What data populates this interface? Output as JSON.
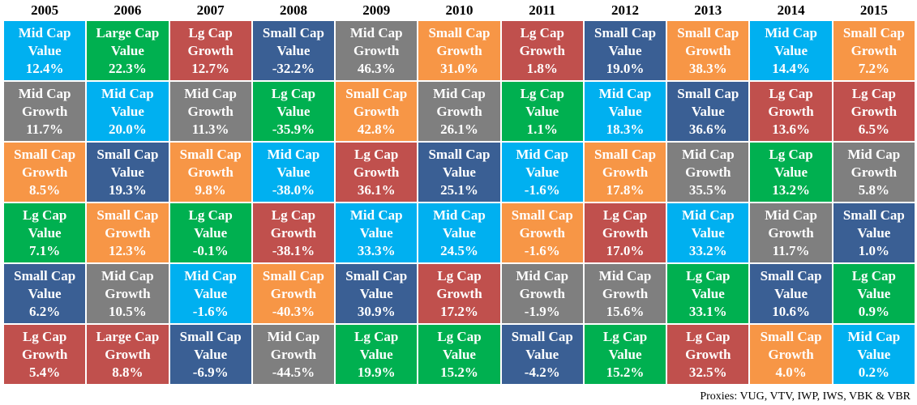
{
  "columns": [
    {
      "year": "2005",
      "cells": [
        {
          "line1": "Mid Cap",
          "line2": "Value",
          "value": "12.4%",
          "color": "#00b0f0"
        },
        {
          "line1": "Mid Cap",
          "line2": "Growth",
          "value": "11.7%",
          "color": "#7f7f7f"
        },
        {
          "line1": "Small Cap",
          "line2": "Growth",
          "value": "8.5%",
          "color": "#f79646"
        },
        {
          "line1": "Lg Cap",
          "line2": "Value",
          "value": "7.1%",
          "color": "#00b050"
        },
        {
          "line1": "Small Cap",
          "line2": "Value",
          "value": "6.2%",
          "color": "#3a5f94"
        },
        {
          "line1": "Lg Cap",
          "line2": "Growth",
          "value": "5.4%",
          "color": "#c0504d"
        }
      ]
    },
    {
      "year": "2006",
      "cells": [
        {
          "line1": "Large Cap",
          "line2": "Value",
          "value": "22.3%",
          "color": "#00b050"
        },
        {
          "line1": "Mid Cap",
          "line2": "Value",
          "value": "20.0%",
          "color": "#00b0f0"
        },
        {
          "line1": "Small Cap",
          "line2": "Value",
          "value": "19.3%",
          "color": "#3a5f94"
        },
        {
          "line1": "Small Cap",
          "line2": "Growth",
          "value": "12.3%",
          "color": "#f79646"
        },
        {
          "line1": "Mid Cap",
          "line2": "Growth",
          "value": "10.5%",
          "color": "#7f7f7f"
        },
        {
          "line1": "Large Cap",
          "line2": "Growth",
          "value": "8.8%",
          "color": "#c0504d"
        }
      ]
    },
    {
      "year": "2007",
      "cells": [
        {
          "line1": "Lg Cap",
          "line2": "Growth",
          "value": "12.7%",
          "color": "#c0504d"
        },
        {
          "line1": "Mid Cap",
          "line2": "Growth",
          "value": "11.3%",
          "color": "#7f7f7f"
        },
        {
          "line1": "Small Cap",
          "line2": "Growth",
          "value": "9.8%",
          "color": "#f79646"
        },
        {
          "line1": "Lg Cap",
          "line2": "Value",
          "value": "-0.1%",
          "color": "#00b050"
        },
        {
          "line1": "Mid Cap",
          "line2": "Value",
          "value": "-1.6%",
          "color": "#00b0f0"
        },
        {
          "line1": "Small Cap",
          "line2": "Value",
          "value": "-6.9%",
          "color": "#3a5f94"
        }
      ]
    },
    {
      "year": "2008",
      "cells": [
        {
          "line1": "Small Cap",
          "line2": "Value",
          "value": "-32.2%",
          "color": "#3a5f94"
        },
        {
          "line1": "Lg Cap",
          "line2": "Value",
          "value": "-35.9%",
          "color": "#00b050"
        },
        {
          "line1": "Mid Cap",
          "line2": "Value",
          "value": "-38.0%",
          "color": "#00b0f0"
        },
        {
          "line1": "Lg Cap",
          "line2": "Growth",
          "value": "-38.1%",
          "color": "#c0504d"
        },
        {
          "line1": "Small Cap",
          "line2": "Growth",
          "value": "-40.3%",
          "color": "#f79646"
        },
        {
          "line1": "Mid Cap",
          "line2": "Growth",
          "value": "-44.5%",
          "color": "#7f7f7f"
        }
      ]
    },
    {
      "year": "2009",
      "cells": [
        {
          "line1": "Mid Cap",
          "line2": "Growth",
          "value": "46.3%",
          "color": "#7f7f7f"
        },
        {
          "line1": "Small Cap",
          "line2": "Growth",
          "value": "42.8%",
          "color": "#f79646"
        },
        {
          "line1": "Lg Cap",
          "line2": "Growth",
          "value": "36.1%",
          "color": "#c0504d"
        },
        {
          "line1": "Mid Cap",
          "line2": "Value",
          "value": "33.3%",
          "color": "#00b0f0"
        },
        {
          "line1": "Small Cap",
          "line2": "Value",
          "value": "30.9%",
          "color": "#3a5f94"
        },
        {
          "line1": "Lg Cap",
          "line2": "Value",
          "value": "19.9%",
          "color": "#00b050"
        }
      ]
    },
    {
      "year": "2010",
      "cells": [
        {
          "line1": "Small Cap",
          "line2": "Growth",
          "value": "31.0%",
          "color": "#f79646"
        },
        {
          "line1": "Mid Cap",
          "line2": "Growth",
          "value": "26.1%",
          "color": "#7f7f7f"
        },
        {
          "line1": "Small Cap",
          "line2": "Value",
          "value": "25.1%",
          "color": "#3a5f94"
        },
        {
          "line1": "Mid Cap",
          "line2": "Value",
          "value": "24.5%",
          "color": "#00b0f0"
        },
        {
          "line1": "Lg Cap",
          "line2": "Growth",
          "value": "17.2%",
          "color": "#c0504d"
        },
        {
          "line1": "Lg Cap",
          "line2": "Value",
          "value": "15.2%",
          "color": "#00b050"
        }
      ]
    },
    {
      "year": "2011",
      "cells": [
        {
          "line1": "Lg Cap",
          "line2": "Growth",
          "value": "1.8%",
          "color": "#c0504d"
        },
        {
          "line1": "Lg Cap",
          "line2": "Value",
          "value": "1.1%",
          "color": "#00b050"
        },
        {
          "line1": "Mid Cap",
          "line2": "Value",
          "value": "-1.6%",
          "color": "#00b0f0"
        },
        {
          "line1": "Small Cap",
          "line2": "Growth",
          "value": "-1.6%",
          "color": "#f79646"
        },
        {
          "line1": "Mid Cap",
          "line2": "Growth",
          "value": "-1.9%",
          "color": "#7f7f7f"
        },
        {
          "line1": "Small Cap",
          "line2": "Value",
          "value": "-4.2%",
          "color": "#3a5f94"
        }
      ]
    },
    {
      "year": "2012",
      "cells": [
        {
          "line1": "Small Cap",
          "line2": "Value",
          "value": "19.0%",
          "color": "#3a5f94"
        },
        {
          "line1": "Mid Cap",
          "line2": "Value",
          "value": "18.3%",
          "color": "#00b0f0"
        },
        {
          "line1": "Small Cap",
          "line2": "Growth",
          "value": "17.8%",
          "color": "#f79646"
        },
        {
          "line1": "Lg Cap",
          "line2": "Growth",
          "value": "17.0%",
          "color": "#c0504d"
        },
        {
          "line1": "Mid Cap",
          "line2": "Growth",
          "value": "15.6%",
          "color": "#7f7f7f"
        },
        {
          "line1": "Lg Cap",
          "line2": "Value",
          "value": "15.2%",
          "color": "#00b050"
        }
      ]
    },
    {
      "year": "2013",
      "cells": [
        {
          "line1": "Small Cap",
          "line2": "Growth",
          "value": "38.3%",
          "color": "#f79646"
        },
        {
          "line1": "Small Cap",
          "line2": "Value",
          "value": "36.6%",
          "color": "#3a5f94"
        },
        {
          "line1": "Mid Cap",
          "line2": "Growth",
          "value": "35.5%",
          "color": "#7f7f7f"
        },
        {
          "line1": "Mid Cap",
          "line2": "Value",
          "value": "33.2%",
          "color": "#00b0f0"
        },
        {
          "line1": "Lg Cap",
          "line2": "Value",
          "value": "33.1%",
          "color": "#00b050"
        },
        {
          "line1": "Lg Cap",
          "line2": "Growth",
          "value": "32.5%",
          "color": "#c0504d"
        }
      ]
    },
    {
      "year": "2014",
      "cells": [
        {
          "line1": "Mid Cap",
          "line2": "Value",
          "value": "14.4%",
          "color": "#00b0f0"
        },
        {
          "line1": "Lg Cap",
          "line2": "Growth",
          "value": "13.6%",
          "color": "#c0504d"
        },
        {
          "line1": "Lg Cap",
          "line2": "Value",
          "value": "13.2%",
          "color": "#00b050"
        },
        {
          "line1": "Mid Cap",
          "line2": "Growth",
          "value": "11.7%",
          "color": "#7f7f7f"
        },
        {
          "line1": "Small Cap",
          "line2": "Value",
          "value": "10.6%",
          "color": "#3a5f94"
        },
        {
          "line1": "Small Cap",
          "line2": "Growth",
          "value": "4.0%",
          "color": "#f79646"
        }
      ]
    },
    {
      "year": "2015",
      "cells": [
        {
          "line1": "Small Cap",
          "line2": "Growth",
          "value": "7.2%",
          "color": "#f79646"
        },
        {
          "line1": "Lg Cap",
          "line2": "Growth",
          "value": "6.5%",
          "color": "#c0504d"
        },
        {
          "line1": "Mid Cap",
          "line2": "Growth",
          "value": "5.8%",
          "color": "#7f7f7f"
        },
        {
          "line1": "Small Cap",
          "line2": "Value",
          "value": "1.0%",
          "color": "#3a5f94"
        },
        {
          "line1": "Lg Cap",
          "line2": "Value",
          "value": "0.9%",
          "color": "#00b050"
        },
        {
          "line1": "Mid Cap",
          "line2": "Value",
          "value": "0.2%",
          "color": "#00b0f0"
        }
      ]
    }
  ],
  "footer": "Proxies: VUG, VTV, IWP, IWS, VBK & VBR"
}
